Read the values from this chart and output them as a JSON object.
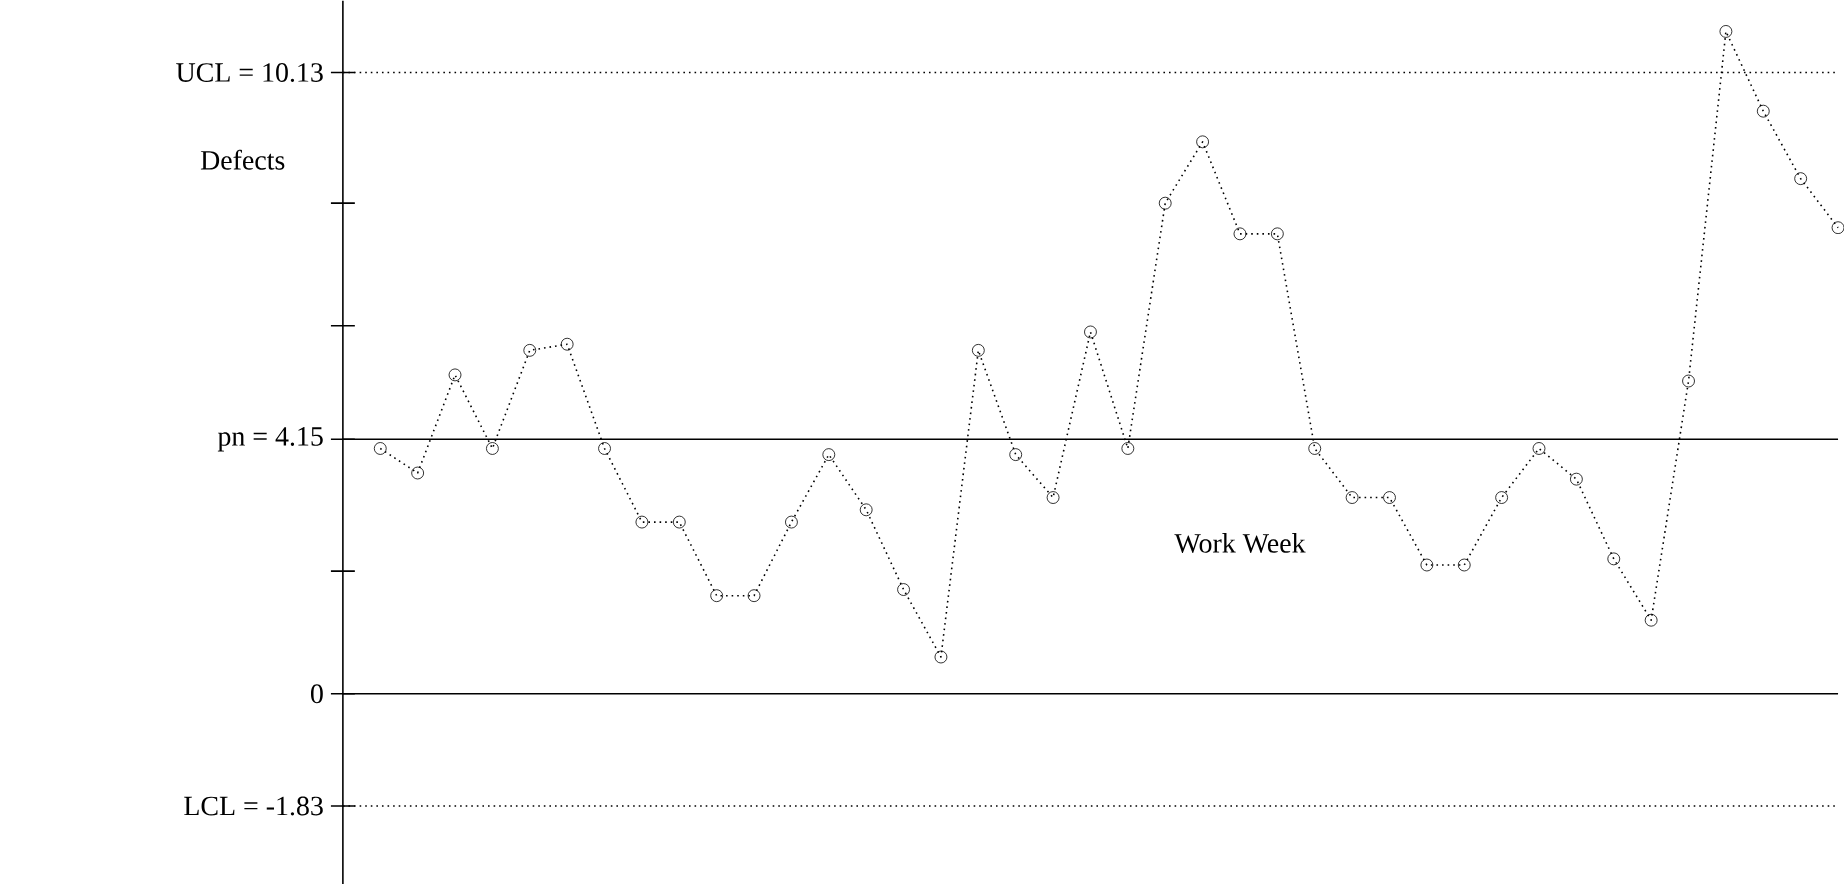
{
  "chart_data": {
    "type": "line",
    "xlabel": "Work Week",
    "ylabel": "Defects",
    "categories": [
      null,
      null,
      null,
      null,
      null,
      null,
      null,
      null,
      null,
      null,
      null,
      null,
      null,
      null,
      null,
      null,
      null,
      null,
      null,
      null,
      null,
      null,
      null,
      null,
      null,
      null,
      null,
      null,
      null,
      null,
      null,
      null,
      null,
      null,
      null,
      null,
      null,
      null,
      null,
      null
    ],
    "series": [
      {
        "color": "#000000",
        "values": [
          4.0,
          3.6,
          5.2,
          4.0,
          5.6,
          5.7,
          4.0,
          2.8,
          2.8,
          1.6,
          1.6,
          2.8,
          3.9,
          3.0,
          1.7,
          0.6,
          5.6,
          3.9,
          3.2,
          5.9,
          4.0,
          8.0,
          9.0,
          7.5,
          7.5,
          4.0,
          3.2,
          3.2,
          2.1,
          2.1,
          3.2,
          4.0,
          3.5,
          2.2,
          1.2,
          5.1,
          10.8,
          9.5,
          8.4,
          7.6
        ]
      }
    ],
    "marker": "circle",
    "line_style": "dotted",
    "ylim": [
      -3.1,
      11.3
    ],
    "yticks": [
      {
        "value": -1.83,
        "label": "LCL = -1.83"
      },
      {
        "value": 0,
        "label": "0"
      },
      {
        "value": 2,
        "label": null
      },
      {
        "value": 4.15,
        "label": "pn = 4.15"
      },
      {
        "value": 6,
        "label": null
      },
      {
        "value": 8,
        "label": null
      },
      {
        "value": 10.13,
        "label": "UCL = 10.13"
      }
    ],
    "ref_lines": [
      {
        "axis": "y",
        "value": 10.13,
        "line_style": "dotted",
        "color": "#000000"
      },
      {
        "axis": "y",
        "value": 4.15,
        "line_style": "solid",
        "color": "#000000"
      },
      {
        "axis": "y",
        "value": 0,
        "line_style": "solid",
        "color": "#000000"
      },
      {
        "axis": "y",
        "value": -1.83,
        "line_style": "dotted",
        "color": "#000000"
      }
    ]
  }
}
